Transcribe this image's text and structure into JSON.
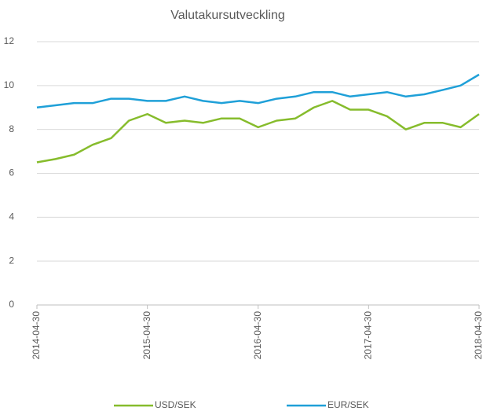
{
  "chart_data": {
    "type": "line",
    "title": "Valutakursutveckling",
    "x": [
      "2014-04-30",
      "2014-06-30",
      "2014-08-31",
      "2014-10-31",
      "2014-12-31",
      "2015-02-28",
      "2015-04-30",
      "2015-06-30",
      "2015-08-31",
      "2015-10-31",
      "2015-12-31",
      "2016-02-29",
      "2016-04-30",
      "2016-06-30",
      "2016-08-31",
      "2016-10-31",
      "2016-12-31",
      "2017-02-28",
      "2017-04-30",
      "2017-06-30",
      "2017-08-31",
      "2017-10-31",
      "2017-12-31",
      "2018-02-28",
      "2018-04-30"
    ],
    "series": [
      {
        "name": "USD/SEK",
        "color": "#86bc2c",
        "values": [
          6.5,
          6.65,
          6.85,
          7.3,
          7.6,
          8.4,
          8.7,
          8.3,
          8.4,
          8.3,
          8.5,
          8.5,
          8.1,
          8.4,
          8.5,
          9.0,
          9.3,
          8.9,
          8.9,
          8.6,
          8.0,
          8.3,
          8.3,
          8.1,
          8.7
        ]
      },
      {
        "name": "EUR/SEK",
        "color": "#1fa0d8",
        "values": [
          9.0,
          9.1,
          9.2,
          9.2,
          9.4,
          9.4,
          9.3,
          9.3,
          9.5,
          9.3,
          9.2,
          9.3,
          9.2,
          9.4,
          9.5,
          9.7,
          9.7,
          9.5,
          9.6,
          9.7,
          9.5,
          9.6,
          9.8,
          10.0,
          10.5
        ]
      }
    ],
    "xlim": [
      "2014-04-30",
      "2018-04-30"
    ],
    "xticks": [
      "2014-04-30",
      "2015-04-30",
      "2016-04-30",
      "2017-04-30",
      "2018-04-30"
    ],
    "ylim": [
      0,
      12
    ],
    "yticks": [
      0,
      2,
      4,
      6,
      8,
      10,
      12
    ],
    "grid": true,
    "legend": "bottom"
  }
}
